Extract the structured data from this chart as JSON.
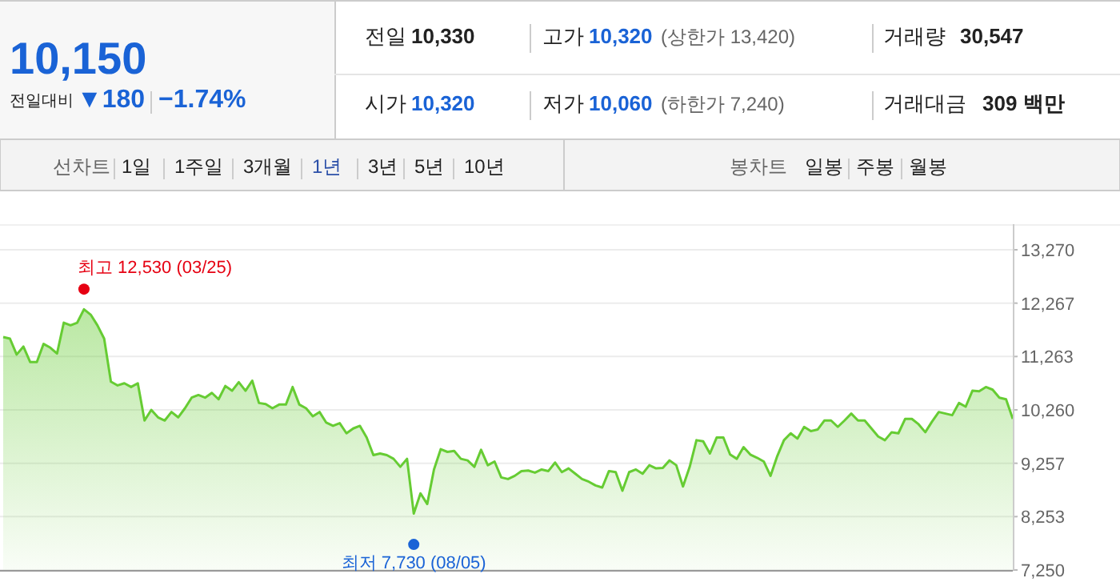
{
  "chart_data": [
    {
      "type": "other",
      "annotations": [
        "10,150",
        "전일대비",
        "▼180",
        "−1.74%",
        "전일",
        "10,330",
        "고가",
        "10,320",
        "(상한가 13,420)",
        "거래량",
        "30,547",
        "시가",
        "10,320",
        "저가",
        "10,060",
        "(하한가 7,240)",
        "거래대금",
        "309 백만",
        "선차트",
        "1일",
        "1주일",
        "3개월",
        "1년",
        "3년",
        "5년",
        "10년",
        "봉차트",
        "일봉",
        "주봉",
        "월봉"
      ]
    },
    {
      "type": "area",
      "categories": [
        null,
        null,
        null,
        null,
        null,
        null,
        null,
        null,
        null,
        null,
        null,
        null,
        null,
        null,
        null,
        null,
        null,
        null,
        null,
        null,
        null,
        null,
        null,
        null,
        null,
        null,
        null,
        null,
        null,
        null,
        null,
        null,
        null,
        null,
        null,
        null,
        null,
        null,
        null,
        null,
        null,
        null,
        null,
        null,
        null,
        null,
        null,
        null,
        null,
        null,
        null,
        null,
        null,
        null,
        null,
        null,
        null,
        null,
        null,
        null,
        null,
        null,
        null,
        null,
        null,
        null,
        null,
        null,
        null,
        null,
        null,
        null,
        null,
        null,
        null,
        null,
        null,
        null,
        null,
        null,
        null,
        null,
        null,
        null,
        null,
        null,
        null,
        null,
        null,
        null,
        null,
        null,
        null,
        null,
        null,
        null,
        null,
        null,
        null,
        null,
        null,
        null,
        null,
        null,
        null,
        null,
        null,
        null,
        null,
        null,
        null,
        null,
        null,
        null,
        null,
        null,
        null,
        null,
        null,
        null,
        null,
        null,
        null,
        null,
        null,
        null,
        null,
        null,
        null,
        null,
        null,
        null,
        null,
        null,
        null,
        null,
        null,
        null,
        null,
        null,
        null,
        null,
        null,
        null,
        null,
        null,
        null,
        null,
        null,
        null,
        null
      ],
      "series": [
        {
          "color": "#66cc33",
          "values": [
            11630,
            11600,
            11300,
            11450,
            11160,
            11160,
            11500,
            11430,
            11320,
            11900,
            11850,
            11900,
            12150,
            12050,
            11850,
            11600,
            10790,
            10720,
            10760,
            10690,
            10760,
            10060,
            10260,
            10120,
            10060,
            10220,
            10120,
            10290,
            10490,
            10540,
            10490,
            10580,
            10460,
            10710,
            10620,
            10780,
            10620,
            10810,
            10390,
            10370,
            10290,
            10360,
            10360,
            10690,
            10360,
            10290,
            10140,
            10220,
            10020,
            9960,
            10010,
            9820,
            9910,
            9960,
            9740,
            9410,
            9440,
            9410,
            9340,
            9190,
            9340,
            8310,
            8690,
            8490,
            9140,
            9520,
            9470,
            9490,
            9340,
            9310,
            9190,
            9510,
            9220,
            9290,
            8990,
            8960,
            9020,
            9110,
            9120,
            9080,
            9140,
            9110,
            9270,
            9090,
            9160,
            9060,
            8960,
            8910,
            8840,
            8800,
            9110,
            9090,
            8740,
            9090,
            9140,
            9060,
            9220,
            9160,
            9170,
            9310,
            9220,
            8820,
            9190,
            9690,
            9670,
            9440,
            9740,
            9740,
            9420,
            9340,
            9560,
            9420,
            9360,
            9290,
            9020,
            9390,
            9690,
            9820,
            9720,
            9940,
            9860,
            9890,
            10060,
            10060,
            9940,
            10060,
            10190,
            10060,
            10060,
            9910,
            9760,
            9690,
            9840,
            9820,
            10090,
            10090,
            9990,
            9840,
            10040,
            10220,
            10190,
            10160,
            10390,
            10320,
            10620,
            10610,
            10690,
            10640,
            10490,
            10460,
            10090
          ]
        },
        {
          "type": "scatter",
          "color": "#e60012",
          "values": [
            null,
            null,
            null,
            null,
            null,
            null,
            null,
            null,
            null,
            null,
            null,
            null,
            12530,
            null,
            null,
            null,
            null,
            null,
            null,
            null,
            null,
            null,
            null,
            null,
            null,
            null,
            null,
            null,
            null,
            null,
            null,
            null,
            null,
            null,
            null,
            null,
            null,
            null,
            null,
            null,
            null,
            null,
            null,
            null,
            null,
            null,
            null,
            null,
            null,
            null,
            null,
            null,
            null,
            null,
            null,
            null,
            null,
            null,
            null,
            null,
            null,
            null,
            null,
            null,
            null,
            null,
            null,
            null,
            null,
            null,
            null,
            null,
            null,
            null,
            null,
            null,
            null,
            null,
            null,
            null,
            null,
            null,
            null,
            null,
            null,
            null,
            null,
            null,
            null,
            null,
            null,
            null,
            null,
            null,
            null,
            null,
            null,
            null,
            null,
            null,
            null,
            null,
            null,
            null,
            null,
            null,
            null,
            null,
            null,
            null,
            null,
            null,
            null,
            null,
            null,
            null,
            null,
            null,
            null,
            null,
            null,
            null,
            null,
            null,
            null,
            null,
            null,
            null,
            null,
            null,
            null,
            null,
            null,
            null,
            null,
            null,
            null,
            null,
            null,
            null,
            null,
            null,
            null,
            null,
            null,
            null,
            null,
            null,
            null,
            null,
            null
          ]
        },
        {
          "type": "scatter",
          "color": "#1a63d6",
          "values": [
            null,
            null,
            null,
            null,
            null,
            null,
            null,
            null,
            null,
            null,
            null,
            null,
            null,
            null,
            null,
            null,
            null,
            null,
            null,
            null,
            null,
            null,
            null,
            null,
            null,
            null,
            null,
            null,
            null,
            null,
            null,
            null,
            null,
            null,
            null,
            null,
            null,
            null,
            null,
            null,
            null,
            null,
            null,
            null,
            null,
            null,
            null,
            null,
            null,
            null,
            null,
            null,
            null,
            null,
            null,
            null,
            null,
            null,
            null,
            null,
            null,
            7730,
            null,
            null,
            null,
            null,
            null,
            null,
            null,
            null,
            null,
            null,
            null,
            null,
            null,
            null,
            null,
            null,
            null,
            null,
            null,
            null,
            null,
            null,
            null,
            null,
            null,
            null,
            null,
            null,
            null,
            null,
            null,
            null,
            null,
            null,
            null,
            null,
            null,
            null,
            null,
            null,
            null,
            null,
            null,
            null,
            null,
            null,
            null,
            null,
            null,
            null,
            null,
            null,
            null,
            null,
            null,
            null,
            null,
            null,
            null,
            null,
            null,
            null,
            null,
            null,
            null,
            null,
            null,
            null,
            null,
            null,
            null,
            null,
            null,
            null,
            null,
            null,
            null,
            null,
            null,
            null,
            null,
            null,
            null,
            null,
            null,
            null,
            null,
            null,
            null
          ]
        }
      ],
      "ylim": [
        7250,
        13270
      ],
      "yticks": [
        {
          "value": 7250,
          "label": "7,250"
        },
        {
          "value": 8253,
          "label": "8,253"
        },
        {
          "value": 9257,
          "label": "9,257"
        },
        {
          "value": 10260,
          "label": "10,260"
        },
        {
          "value": 11263,
          "label": "11,263"
        },
        {
          "value": 12267,
          "label": "12,267"
        },
        {
          "value": 13270,
          "label": "13,270"
        }
      ],
      "grid": "y",
      "tick_labels": "y",
      "annotations": [
        "최고 12,530 (03/25)",
        "최저 7,730 (08/05)"
      ]
    }
  ]
}
